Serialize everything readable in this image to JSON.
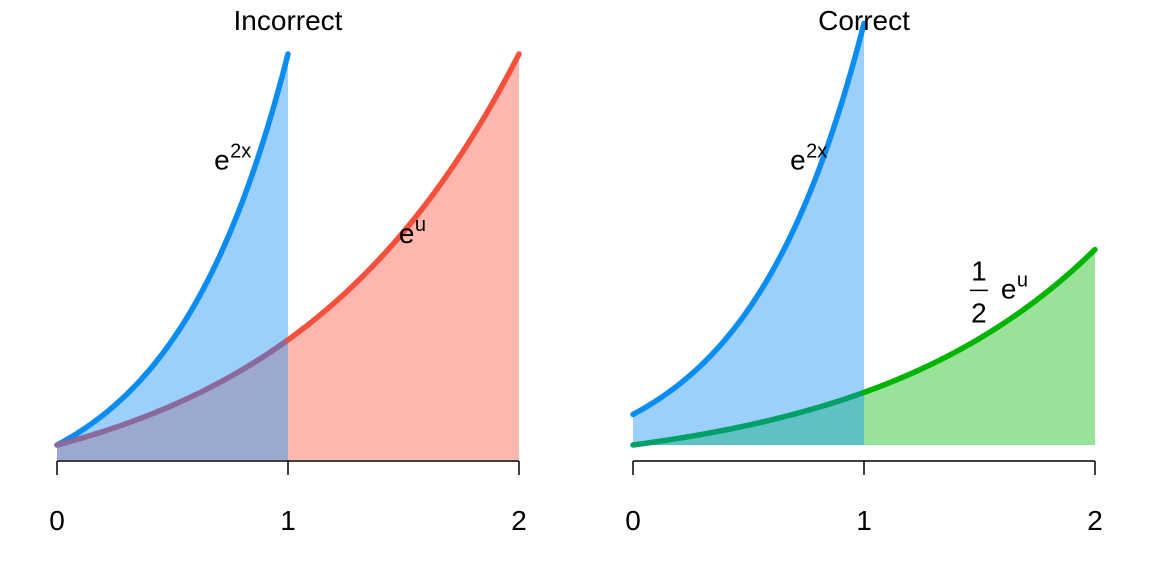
{
  "chart_data": [
    {
      "type": "area",
      "title": "Incorrect",
      "x_ticks": [
        "0",
        "1",
        "2"
      ],
      "xlim": [
        0,
        2
      ],
      "ylim": [
        0,
        7.389
      ],
      "series": [
        {
          "name": "e^{2x}",
          "function": "exp(2x)",
          "x_range": [
            0,
            1
          ],
          "color": "#0a8cf0",
          "fill": "#9dcffb"
        },
        {
          "name": "e^u",
          "function": "exp(x)",
          "x_range": [
            0,
            2
          ],
          "color": "#f5503c",
          "fill": "#feb7ae"
        }
      ],
      "overlap_fill": "#9ba8cf",
      "annotations": [
        {
          "base": "e",
          "sup": "2x",
          "x": 0.68,
          "y": 5.5
        },
        {
          "base": "e",
          "sup": "u",
          "x": 1.48,
          "y": 4.3
        }
      ]
    },
    {
      "type": "area",
      "title": "Correct",
      "x_ticks": [
        "0",
        "1",
        "2"
      ],
      "xlim": [
        0,
        2
      ],
      "ylim": [
        0,
        7.389
      ],
      "series": [
        {
          "name": "e^{2x}",
          "function": "exp(2x)",
          "x_range": [
            0,
            1
          ],
          "color": "#0a8cf0",
          "fill": "#9dcffb"
        },
        {
          "name": "(1/2) e^u",
          "function": "0.5*exp(x)",
          "x_range": [
            0,
            2
          ],
          "color": "#00b400",
          "fill": "#9ae19a"
        }
      ],
      "overlap_fill": "#5fc1c4",
      "overlap_line_color": "#00a068",
      "baseline_offset": 0.5,
      "annotations": [
        {
          "base": "e",
          "sup": "2x",
          "x": 0.68,
          "y": 5.5
        },
        {
          "fraction_num": "1",
          "fraction_den": "2",
          "base": "e",
          "sup": "u",
          "x": 1.48,
          "y": 3.2
        }
      ]
    }
  ]
}
